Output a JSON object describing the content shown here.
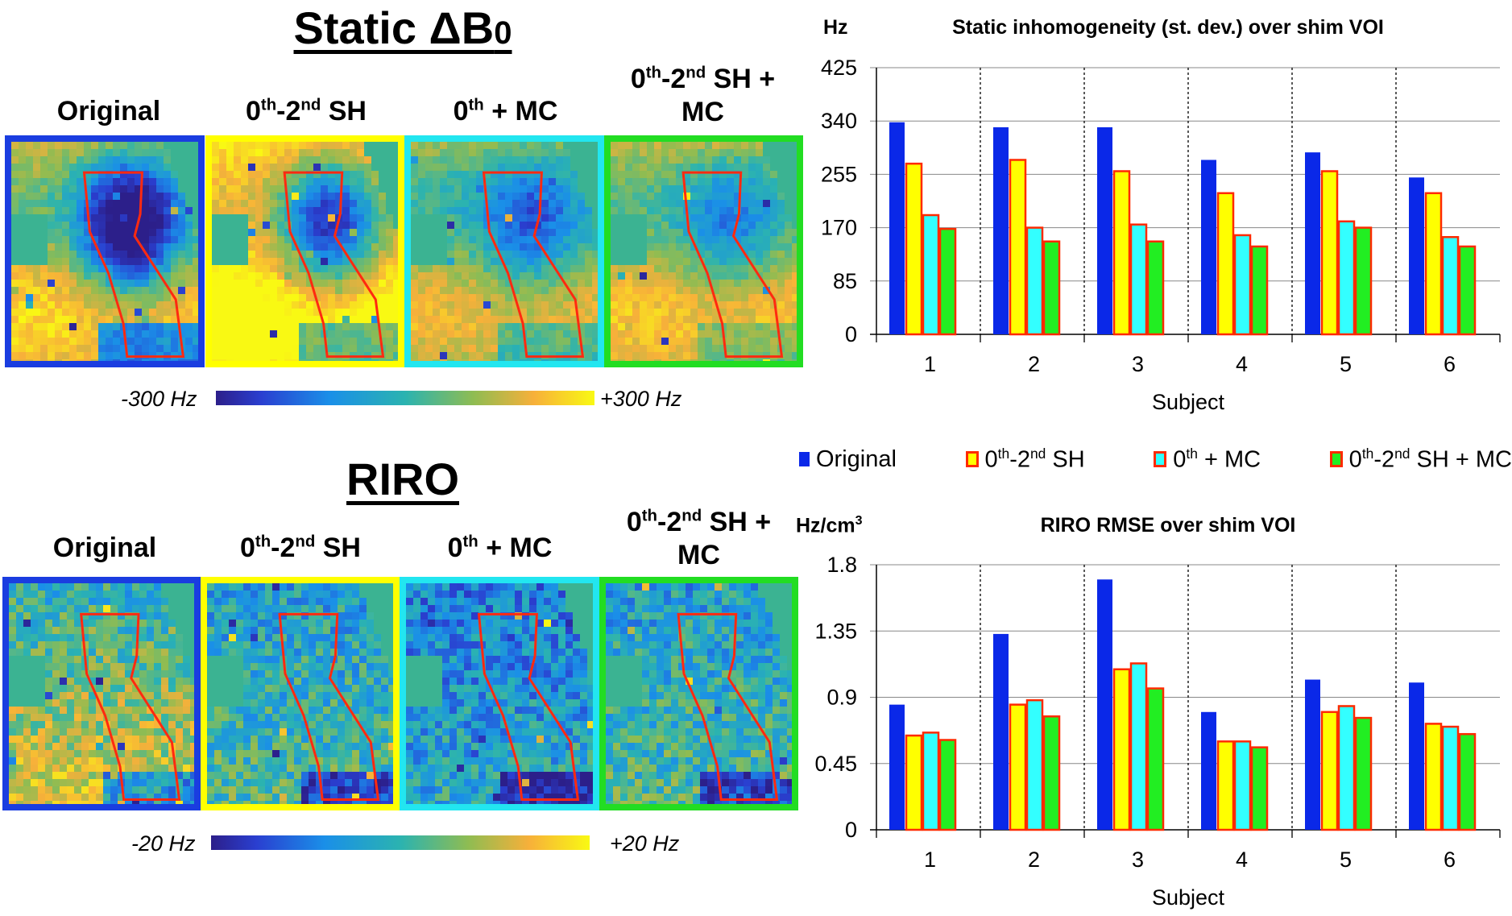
{
  "static": {
    "title_main": "Static ΔB",
    "title_sub": "0",
    "labels": [
      {
        "base": "Original"
      },
      {
        "base": "0",
        "sup1": "th",
        "mid": "-2",
        "sup2": "nd",
        "tail": " SH"
      },
      {
        "base": "0",
        "sup1": "th",
        "tail": " + MC"
      },
      {
        "base": "0",
        "sup1": "th",
        "mid": "-2",
        "sup2": "nd",
        "tail": " SH +",
        "line2": "MC"
      }
    ],
    "colorbar_min": "-300 Hz",
    "colorbar_max": "+300 Hz"
  },
  "riro": {
    "title": "RIRO",
    "labels": [
      {
        "base": "Original"
      },
      {
        "base": "0",
        "sup1": "th",
        "mid": "-2",
        "sup2": "nd",
        "tail": " SH"
      },
      {
        "base": "0",
        "sup1": "th",
        "tail": " + MC"
      },
      {
        "base": "0",
        "sup1": "th",
        "mid": "-2",
        "sup2": "nd",
        "tail": " SH +",
        "line2": "MC"
      }
    ],
    "colorbar_min": "-20 Hz",
    "colorbar_max": "+20 Hz"
  },
  "panel_colors": [
    "#1a3de0",
    "#ffff00",
    "#22e6f0",
    "#22dd22"
  ],
  "legend": {
    "items": [
      {
        "base": "Original",
        "fill": "#0a28e8",
        "border": "#0a28e8"
      },
      {
        "base": "0",
        "sup1": "th",
        "mid": "-2",
        "sup2": "nd",
        "tail": " SH",
        "fill": "#ffff00",
        "border": "#ff2a00"
      },
      {
        "base": "0",
        "sup1": "th",
        "tail": " + MC",
        "fill": "#33ffff",
        "border": "#ff2a00"
      },
      {
        "base": "0",
        "sup1": "th",
        "mid": "-2",
        "sup2": "nd",
        "tail": " SH + MC",
        "fill": "#22ee22",
        "border": "#ff2a00"
      }
    ]
  },
  "chart_data": [
    {
      "type": "bar",
      "title": "Static inhomogeneity (st. dev.) over shim VOI",
      "ylabel_unit": "Hz",
      "xlabel": "Subject",
      "categories": [
        "1",
        "2",
        "3",
        "4",
        "5",
        "6"
      ],
      "yticks": [
        "0",
        "85",
        "170",
        "255",
        "340",
        "425"
      ],
      "ylim": [
        0,
        425
      ],
      "series": [
        {
          "name": "Original",
          "values": [
            338,
            330,
            330,
            278,
            290,
            250
          ]
        },
        {
          "name": "0th-2nd SH",
          "values": [
            272,
            278,
            260,
            225,
            260,
            225
          ]
        },
        {
          "name": "0th + MC",
          "values": [
            190,
            170,
            175,
            158,
            180,
            155
          ]
        },
        {
          "name": "0th-2nd SH + MC",
          "values": [
            168,
            148,
            148,
            140,
            170,
            140
          ]
        }
      ]
    },
    {
      "type": "bar",
      "title": "RIRO RMSE over shim VOI",
      "ylabel_unit": "Hz/cm",
      "ylabel_unit_sup": "3",
      "xlabel": "Subject",
      "categories": [
        "1",
        "2",
        "3",
        "4",
        "5",
        "6"
      ],
      "yticks": [
        "0",
        "0.45",
        "0.9",
        "1.35",
        "1.8"
      ],
      "ylim": [
        0,
        1.8
      ],
      "series": [
        {
          "name": "Original",
          "values": [
            0.85,
            1.33,
            1.7,
            0.8,
            1.02,
            1.0
          ]
        },
        {
          "name": "0th-2nd SH",
          "values": [
            0.64,
            0.85,
            1.09,
            0.6,
            0.8,
            0.72
          ]
        },
        {
          "name": "0th + MC",
          "values": [
            0.66,
            0.88,
            1.13,
            0.6,
            0.84,
            0.7
          ]
        },
        {
          "name": "0th-2nd SH + MC",
          "values": [
            0.61,
            0.77,
            0.96,
            0.56,
            0.76,
            0.65
          ]
        }
      ]
    }
  ]
}
